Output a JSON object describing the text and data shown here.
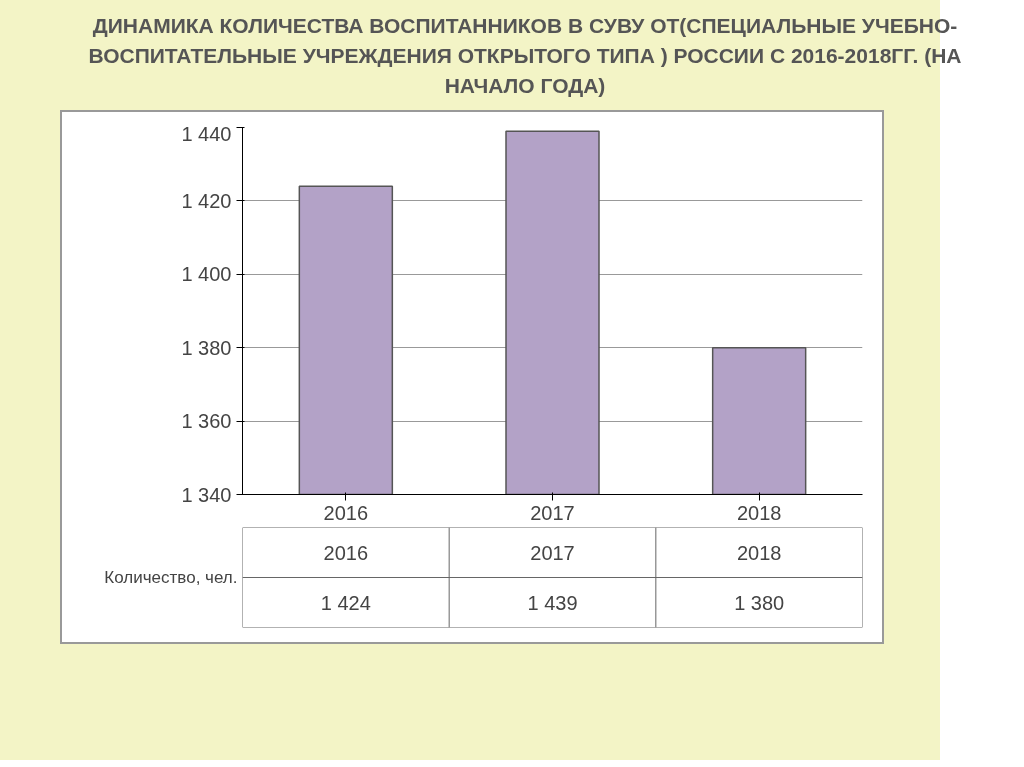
{
  "chart_data": {
    "type": "bar",
    "title": "ДИНАМИКА КОЛИЧЕСТВА ВОСПИТАННИКОВ В СУВУ ОТ(СПЕЦИАЛЬНЫЕ УЧЕБНО-ВОСПИТАТЕЛЬНЫЕ УЧРЕЖДЕНИЯ ОТКРЫТОГО ТИПА ) РОССИИ С 2016-2018ГГ. (НА НАЧАЛО ГОДА)",
    "categories": [
      "2016",
      "2017",
      "2018"
    ],
    "series": [
      {
        "name": "Количество, чел.",
        "color": "#b3a2c7",
        "values": [
          1424,
          1439,
          1380
        ],
        "value_labels": [
          "1 424",
          "1 439",
          "1 380"
        ]
      }
    ],
    "ylim": [
      1340,
      1440
    ],
    "yticks": [
      {
        "value": 1340,
        "label": "1 340"
      },
      {
        "value": 1360,
        "label": "1 360"
      },
      {
        "value": 1380,
        "label": "1 380"
      },
      {
        "value": 1400,
        "label": "1 400"
      },
      {
        "value": 1420,
        "label": "1 420"
      },
      {
        "value": 1440,
        "label": "1 440"
      }
    ],
    "grid": "y"
  }
}
